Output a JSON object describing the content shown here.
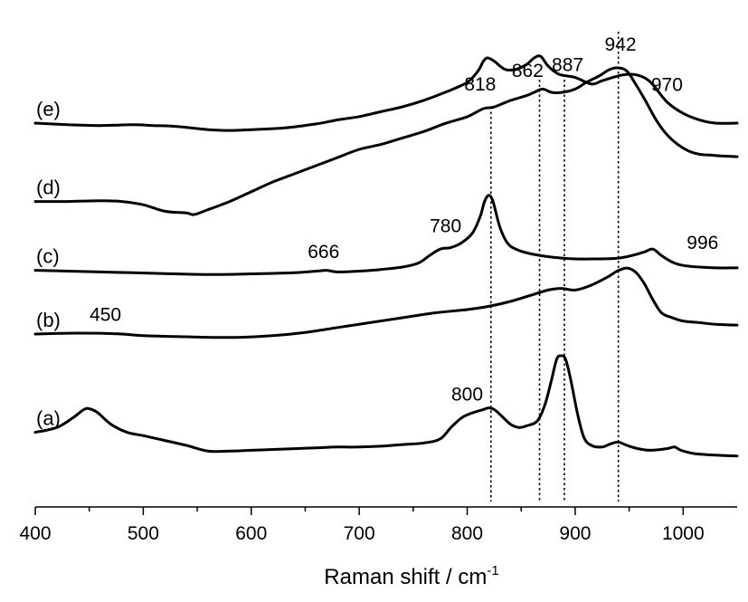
{
  "chart_data": {
    "type": "line",
    "title": "",
    "xlabel": "Raman shift / cm",
    "xlabel_sup": "-1",
    "ylabel": "",
    "xlim": [
      400,
      1050
    ],
    "x_ticks": [
      400,
      500,
      600,
      700,
      800,
      900,
      1000
    ],
    "x_tick_labels": [
      "400",
      "500",
      "600",
      "700",
      "800",
      "900",
      "1000"
    ],
    "grid": false,
    "legend": "none",
    "y_axis_shown": false,
    "reference_lines": [
      822,
      867,
      890,
      940
    ],
    "series": [
      {
        "name": "(a)",
        "points": [
          [
            400,
            0.33
          ],
          [
            420,
            0.36
          ],
          [
            435,
            0.42
          ],
          [
            445,
            0.47
          ],
          [
            450,
            0.475
          ],
          [
            458,
            0.45
          ],
          [
            470,
            0.38
          ],
          [
            485,
            0.33
          ],
          [
            500,
            0.31
          ],
          [
            520,
            0.28
          ],
          [
            540,
            0.25
          ],
          [
            560,
            0.215
          ],
          [
            580,
            0.215
          ],
          [
            600,
            0.22
          ],
          [
            620,
            0.225
          ],
          [
            640,
            0.23
          ],
          [
            660,
            0.235
          ],
          [
            680,
            0.24
          ],
          [
            700,
            0.24
          ],
          [
            720,
            0.245
          ],
          [
            740,
            0.255
          ],
          [
            760,
            0.265
          ],
          [
            775,
            0.29
          ],
          [
            785,
            0.36
          ],
          [
            795,
            0.42
          ],
          [
            805,
            0.45
          ],
          [
            815,
            0.47
          ],
          [
            820,
            0.48
          ],
          [
            825,
            0.47
          ],
          [
            832,
            0.43
          ],
          [
            840,
            0.38
          ],
          [
            848,
            0.36
          ],
          [
            855,
            0.37
          ],
          [
            865,
            0.4
          ],
          [
            872,
            0.5
          ],
          [
            878,
            0.65
          ],
          [
            883,
            0.78
          ],
          [
            887,
            0.8
          ],
          [
            891,
            0.78
          ],
          [
            896,
            0.65
          ],
          [
            902,
            0.45
          ],
          [
            908,
            0.3
          ],
          [
            915,
            0.25
          ],
          [
            925,
            0.24
          ],
          [
            933,
            0.26
          ],
          [
            940,
            0.27
          ],
          [
            948,
            0.25
          ],
          [
            958,
            0.23
          ],
          [
            970,
            0.22
          ],
          [
            985,
            0.23
          ],
          [
            992,
            0.24
          ],
          [
            998,
            0.22
          ],
          [
            1010,
            0.2
          ],
          [
            1030,
            0.19
          ],
          [
            1050,
            0.185
          ]
        ]
      },
      {
        "name": "(b)",
        "points": [
          [
            400,
            0.45
          ],
          [
            430,
            0.455
          ],
          [
            460,
            0.455
          ],
          [
            480,
            0.45
          ],
          [
            500,
            0.44
          ],
          [
            530,
            0.435
          ],
          [
            560,
            0.43
          ],
          [
            590,
            0.43
          ],
          [
            620,
            0.44
          ],
          [
            650,
            0.46
          ],
          [
            680,
            0.49
          ],
          [
            710,
            0.52
          ],
          [
            740,
            0.55
          ],
          [
            770,
            0.58
          ],
          [
            800,
            0.6
          ],
          [
            820,
            0.62
          ],
          [
            840,
            0.65
          ],
          [
            860,
            0.69
          ],
          [
            875,
            0.72
          ],
          [
            887,
            0.73
          ],
          [
            900,
            0.72
          ],
          [
            915,
            0.75
          ],
          [
            930,
            0.8
          ],
          [
            940,
            0.84
          ],
          [
            948,
            0.855
          ],
          [
            956,
            0.83
          ],
          [
            964,
            0.76
          ],
          [
            972,
            0.66
          ],
          [
            980,
            0.58
          ],
          [
            990,
            0.55
          ],
          [
            1000,
            0.53
          ],
          [
            1015,
            0.52
          ],
          [
            1030,
            0.51
          ],
          [
            1050,
            0.505
          ]
        ]
      },
      {
        "name": "(c)",
        "points": [
          [
            400,
            0.53
          ],
          [
            430,
            0.525
          ],
          [
            460,
            0.52
          ],
          [
            490,
            0.515
          ],
          [
            520,
            0.51
          ],
          [
            550,
            0.505
          ],
          [
            580,
            0.505
          ],
          [
            610,
            0.51
          ],
          [
            640,
            0.515
          ],
          [
            660,
            0.525
          ],
          [
            670,
            0.53
          ],
          [
            680,
            0.52
          ],
          [
            700,
            0.525
          ],
          [
            720,
            0.535
          ],
          [
            740,
            0.55
          ],
          [
            755,
            0.575
          ],
          [
            765,
            0.62
          ],
          [
            775,
            0.66
          ],
          [
            785,
            0.67
          ],
          [
            795,
            0.7
          ],
          [
            805,
            0.76
          ],
          [
            812,
            0.86
          ],
          [
            816,
            0.95
          ],
          [
            820,
            0.99
          ],
          [
            824,
            0.95
          ],
          [
            830,
            0.8
          ],
          [
            837,
            0.7
          ],
          [
            845,
            0.66
          ],
          [
            860,
            0.63
          ],
          [
            880,
            0.61
          ],
          [
            900,
            0.6
          ],
          [
            920,
            0.6
          ],
          [
            940,
            0.605
          ],
          [
            955,
            0.625
          ],
          [
            965,
            0.645
          ],
          [
            972,
            0.66
          ],
          [
            980,
            0.62
          ],
          [
            990,
            0.58
          ],
          [
            1000,
            0.56
          ],
          [
            1015,
            0.55
          ],
          [
            1030,
            0.545
          ],
          [
            1050,
            0.545
          ]
        ]
      },
      {
        "name": "(d)",
        "points": [
          [
            400,
            0.68
          ],
          [
            430,
            0.68
          ],
          [
            460,
            0.685
          ],
          [
            480,
            0.68
          ],
          [
            500,
            0.66
          ],
          [
            520,
            0.62
          ],
          [
            540,
            0.61
          ],
          [
            547,
            0.6
          ],
          [
            560,
            0.63
          ],
          [
            580,
            0.68
          ],
          [
            600,
            0.74
          ],
          [
            620,
            0.8
          ],
          [
            640,
            0.85
          ],
          [
            660,
            0.9
          ],
          [
            680,
            0.95
          ],
          [
            700,
            1.0
          ],
          [
            720,
            1.03
          ],
          [
            740,
            1.07
          ],
          [
            760,
            1.11
          ],
          [
            780,
            1.16
          ],
          [
            800,
            1.2
          ],
          [
            815,
            1.25
          ],
          [
            825,
            1.26
          ],
          [
            840,
            1.3
          ],
          [
            855,
            1.33
          ],
          [
            862,
            1.35
          ],
          [
            870,
            1.37
          ],
          [
            878,
            1.35
          ],
          [
            888,
            1.35
          ],
          [
            900,
            1.37
          ],
          [
            910,
            1.41
          ],
          [
            922,
            1.45
          ],
          [
            932,
            1.49
          ],
          [
            940,
            1.5
          ],
          [
            948,
            1.48
          ],
          [
            956,
            1.4
          ],
          [
            965,
            1.3
          ],
          [
            975,
            1.18
          ],
          [
            985,
            1.09
          ],
          [
            995,
            1.03
          ],
          [
            1005,
            0.99
          ],
          [
            1015,
            0.97
          ],
          [
            1025,
            0.965
          ],
          [
            1035,
            0.96
          ],
          [
            1050,
            0.955
          ]
        ]
      },
      {
        "name": "(e)",
        "points": [
          [
            400,
            0.8
          ],
          [
            430,
            0.79
          ],
          [
            460,
            0.785
          ],
          [
            490,
            0.79
          ],
          [
            510,
            0.785
          ],
          [
            530,
            0.78
          ],
          [
            560,
            0.76
          ],
          [
            580,
            0.755
          ],
          [
            600,
            0.76
          ],
          [
            630,
            0.77
          ],
          [
            660,
            0.795
          ],
          [
            680,
            0.82
          ],
          [
            700,
            0.84
          ],
          [
            720,
            0.87
          ],
          [
            740,
            0.9
          ],
          [
            760,
            0.94
          ],
          [
            780,
            0.99
          ],
          [
            800,
            1.05
          ],
          [
            810,
            1.12
          ],
          [
            815,
            1.18
          ],
          [
            819,
            1.2
          ],
          [
            825,
            1.18
          ],
          [
            835,
            1.13
          ],
          [
            845,
            1.13
          ],
          [
            855,
            1.16
          ],
          [
            862,
            1.2
          ],
          [
            868,
            1.21
          ],
          [
            875,
            1.15
          ],
          [
            885,
            1.1
          ],
          [
            900,
            1.08
          ],
          [
            915,
            1.04
          ],
          [
            925,
            1.06
          ],
          [
            940,
            1.09
          ],
          [
            950,
            1.1
          ],
          [
            960,
            1.09
          ],
          [
            970,
            1.05
          ],
          [
            985,
            0.93
          ],
          [
            1000,
            0.86
          ],
          [
            1015,
            0.82
          ],
          [
            1030,
            0.8
          ],
          [
            1050,
            0.8
          ]
        ]
      }
    ],
    "annotations": [
      {
        "text": "942",
        "x": 942,
        "series": 3,
        "dy": -20
      },
      {
        "text": "862",
        "x": 856,
        "series": 3,
        "dy": -20
      },
      {
        "text": "887",
        "x": 893,
        "series": 3,
        "dy": -22
      },
      {
        "text": "818",
        "x": 812,
        "series": 3,
        "dy": -22
      },
      {
        "text": "970",
        "x": 985,
        "series": 4,
        "dy": -12
      },
      {
        "text": "780",
        "x": 780,
        "series": 2,
        "dy": -18
      },
      {
        "text": "666",
        "x": 667,
        "series": 2,
        "dy": -14
      },
      {
        "text": "996",
        "x": 1018,
        "series": 2,
        "dy": -20
      },
      {
        "text": "800",
        "x": 800,
        "series": 0,
        "dy": -16
      },
      {
        "text": "450",
        "x": 465,
        "series": 1,
        "dy": -14
      }
    ],
    "curve_labels": [
      {
        "text": "(e)",
        "series": 4
      },
      {
        "text": "(d)",
        "series": 3
      },
      {
        "text": "(c)",
        "series": 2
      },
      {
        "text": "(b)",
        "series": 1
      },
      {
        "text": "(a)",
        "series": 0
      }
    ]
  }
}
